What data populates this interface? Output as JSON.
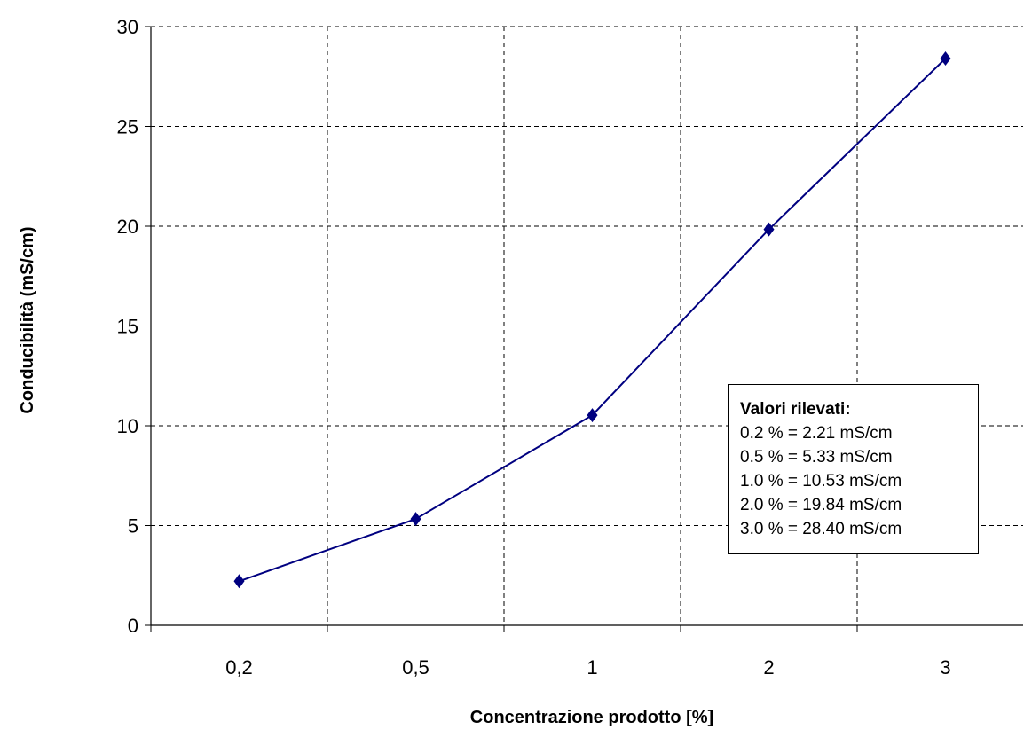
{
  "chart_data": {
    "type": "line",
    "categories": [
      "0,2",
      "0,5",
      "1",
      "2",
      "3"
    ],
    "series": [
      {
        "values": [
          2.21,
          5.33,
          10.53,
          19.84,
          28.4
        ],
        "color": "#000080",
        "marker": "diamond"
      }
    ],
    "xlabel": "Concentrazione prodotto [%]",
    "ylabel": "Conducibilità (mS/cm)",
    "ylim": [
      0,
      30
    ],
    "yticks": [
      0,
      5,
      10,
      15,
      20,
      25,
      30
    ],
    "grid": "dashed",
    "annotation": {
      "title": "Valori rilevati:",
      "lines": [
        "0.2 % = 2.21 mS/cm",
        "0.5 % = 5.33 mS/cm",
        "1.0 % = 10.53 mS/cm",
        "2.0 % = 19.84 mS/cm",
        "3.0 % = 28.40 mS/cm"
      ]
    }
  }
}
